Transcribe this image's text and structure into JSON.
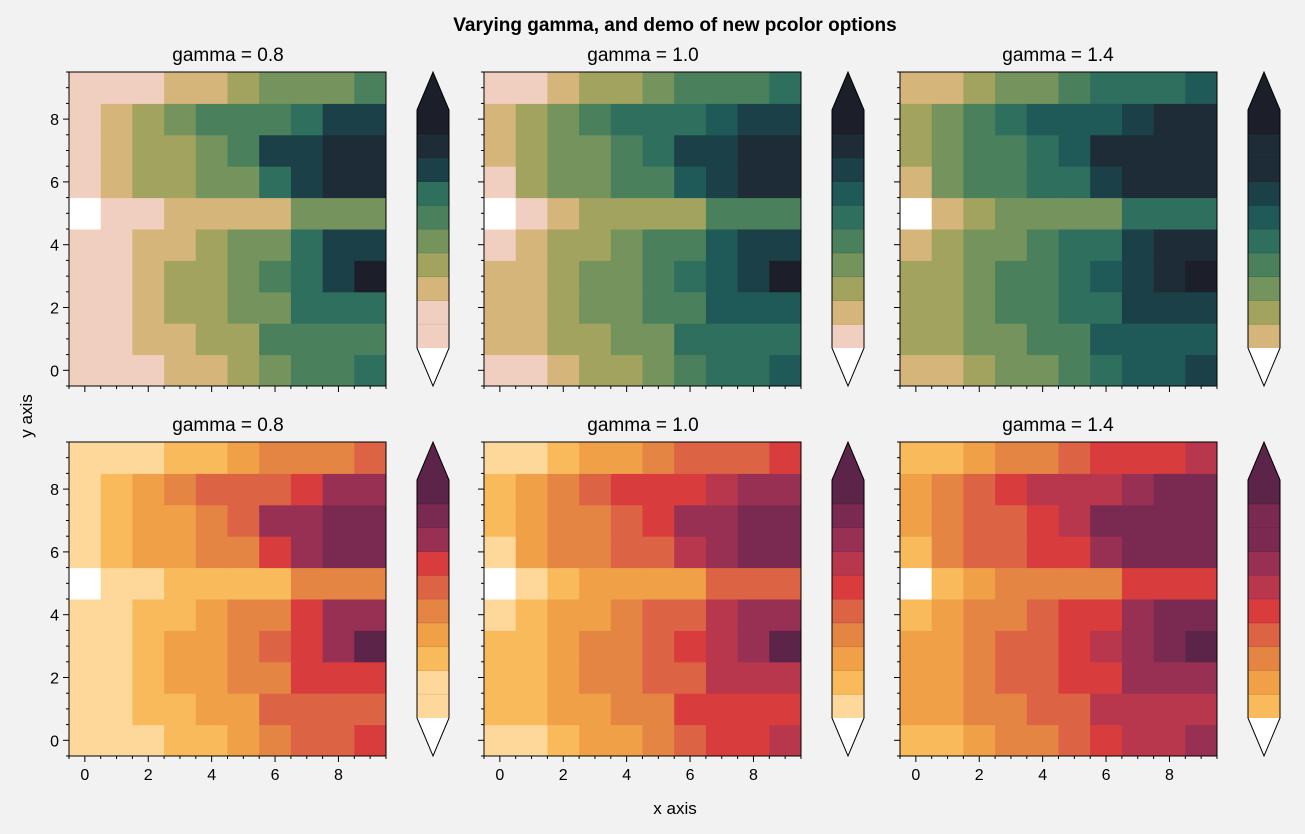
{
  "figure": {
    "title": "Varying gamma, and demo of new pcolor options",
    "xlabel": "x axis",
    "ylabel": "y axis"
  },
  "chart_data": [
    {
      "type": "heatmap",
      "title": "gamma = 0.8",
      "colormap": "green",
      "gamma": 0.8
    },
    {
      "type": "heatmap",
      "title": "gamma = 1.0",
      "colormap": "green",
      "gamma": 1.0
    },
    {
      "type": "heatmap",
      "title": "gamma = 1.4",
      "colormap": "green",
      "gamma": 1.4
    },
    {
      "type": "heatmap",
      "title": "gamma = 0.8",
      "colormap": "orange-red",
      "gamma": 0.8
    },
    {
      "type": "heatmap",
      "title": "gamma = 1.0",
      "colormap": "orange-red",
      "gamma": 1.0
    },
    {
      "type": "heatmap",
      "title": "gamma = 1.4",
      "colormap": "orange-red",
      "gamma": 1.4
    }
  ],
  "shared": {
    "x_range": [
      -0.5,
      9.5
    ],
    "y_range": [
      -0.5,
      9.5
    ],
    "x_ticks": [
      0,
      2,
      4,
      6,
      8
    ],
    "y_ticks": [
      0,
      2,
      4,
      6,
      8
    ],
    "grid": false,
    "colorbar": "right of each panel, 10 levels, extend both",
    "levels": 10,
    "z_rows_bottom_to_top": [
      [
        0,
        0,
        1,
        2,
        2,
        3,
        4,
        5,
        5,
        6
      ],
      [
        1,
        1,
        2,
        2,
        3,
        3,
        5,
        5,
        5,
        5
      ],
      [
        1,
        1,
        2,
        3,
        3,
        4,
        4,
        6,
        6,
        6
      ],
      [
        1,
        1,
        2,
        3,
        3,
        4,
        5,
        6,
        7,
        9
      ],
      [
        0,
        1,
        2,
        2,
        3,
        4,
        4,
        6,
        7,
        7
      ],
      [
        -1,
        0,
        1,
        2,
        2,
        2,
        2,
        4,
        4,
        4
      ],
      [
        0,
        2,
        3,
        3,
        4,
        4,
        6,
        7,
        8,
        8
      ],
      [
        1,
        2,
        3,
        3,
        4,
        5,
        7,
        7,
        8,
        8
      ],
      [
        1,
        2,
        3,
        4,
        5,
        5,
        5,
        6,
        7,
        7
      ],
      [
        0,
        0,
        1,
        2,
        2,
        3,
        4,
        4,
        4,
        5
      ]
    ],
    "palettes": {
      "green": [
        "#ffffff",
        "#f1cfc0",
        "#d6b57a",
        "#a2a35e",
        "#75935d",
        "#4a805c",
        "#2f6f5e",
        "#1f5a59",
        "#1b4047",
        "#1e2c37",
        "#1c1f29"
      ],
      "orange-red": [
        "#ffffff",
        "#fdd89a",
        "#f9ba5c",
        "#f0a148",
        "#e58544",
        "#dc6444",
        "#d93c3d",
        "#b8374d",
        "#983053",
        "#7a2a50",
        "#5c2449"
      ]
    }
  }
}
